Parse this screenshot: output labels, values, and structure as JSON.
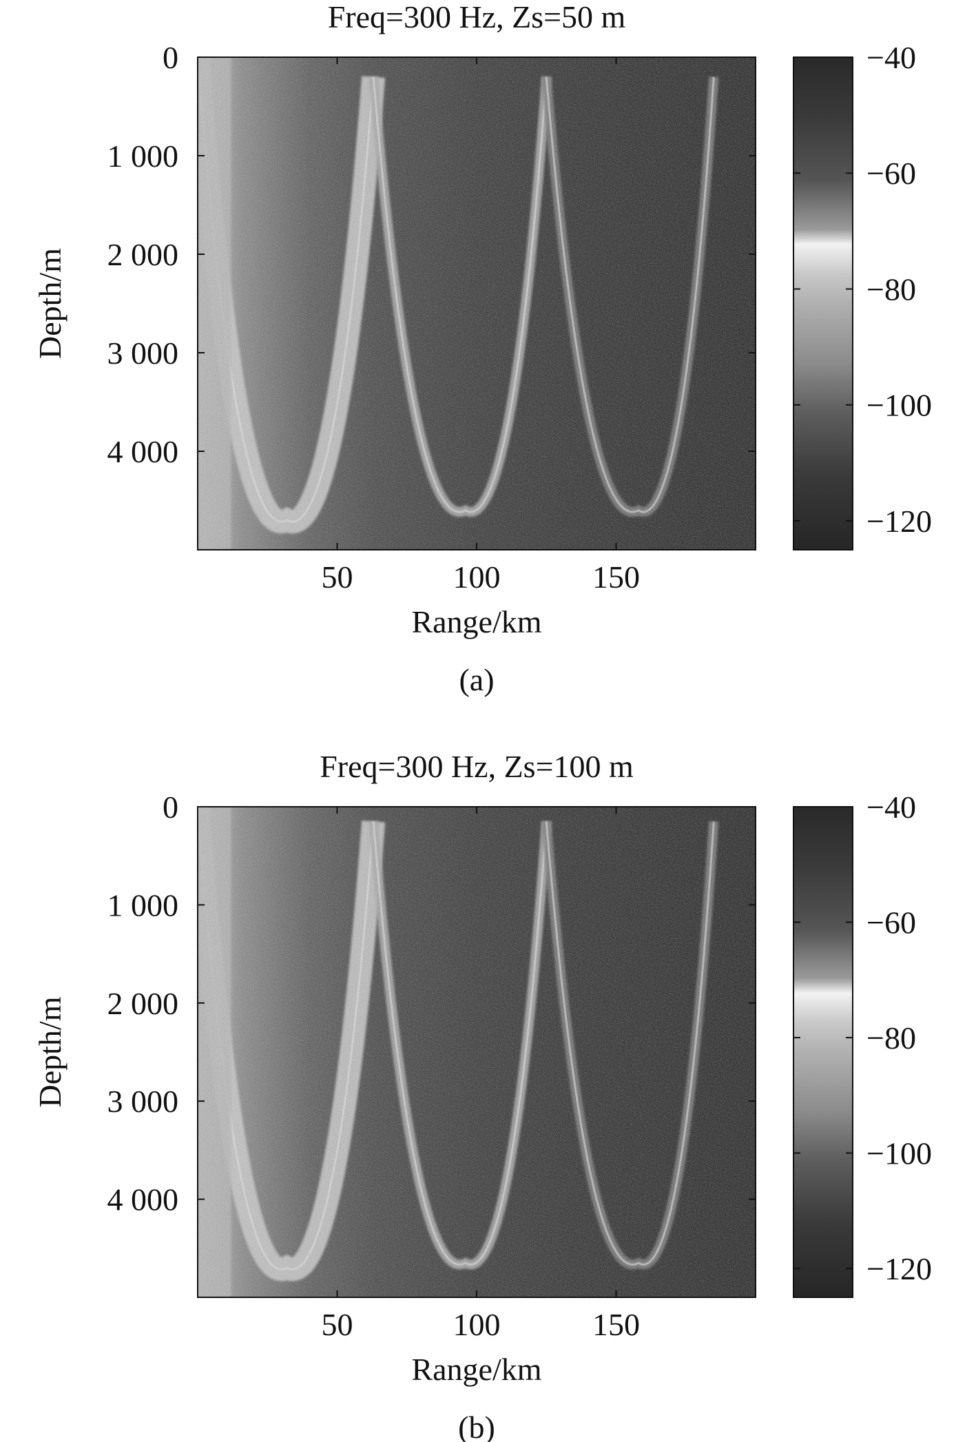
{
  "chart_data": [
    {
      "type": "heatmap",
      "title": "Freq=300 Hz, Zs=50 m",
      "xlabel": "Range/km",
      "ylabel": "Depth/m",
      "xlim": [
        0,
        200
      ],
      "ylim": [
        5000,
        0
      ],
      "xticks": [
        50,
        100,
        150
      ],
      "xtick_labels": [
        "50",
        "100",
        "150"
      ],
      "yticks": [
        0,
        1000,
        2000,
        3000,
        4000
      ],
      "ytick_labels": [
        "0",
        "1 000",
        "2 000",
        "3 000",
        "4 000"
      ],
      "colorbar": {
        "range": [
          -125,
          -40
        ],
        "ticks": [
          -40,
          -60,
          -80,
          -100,
          -120
        ],
        "tick_labels": [
          "−40",
          "−60",
          "−80",
          "−100",
          "−120"
        ],
        "colormap": "gray"
      },
      "convergence_zones": [
        {
          "range_km": 0,
          "depth_m": 0
        },
        {
          "range_km": 63,
          "depth_m": 200
        },
        {
          "range_km": 125,
          "depth_m": 200
        },
        {
          "range_km": 185,
          "depth_m": 200
        }
      ],
      "turning_points": [
        {
          "range_km": 32,
          "depth_m": 4700
        },
        {
          "range_km": 96,
          "depth_m": 4600
        },
        {
          "range_km": 158,
          "depth_m": 4600
        }
      ],
      "caption": "(a)"
    },
    {
      "type": "heatmap",
      "title": "Freq=300 Hz, Zs=100 m",
      "xlabel": "Range/km",
      "ylabel": "Depth/m",
      "xlim": [
        0,
        200
      ],
      "ylim": [
        5000,
        0
      ],
      "xticks": [
        50,
        100,
        150
      ],
      "xtick_labels": [
        "50",
        "100",
        "150"
      ],
      "yticks": [
        0,
        1000,
        2000,
        3000,
        4000
      ],
      "ytick_labels": [
        "0",
        "1 000",
        "2 000",
        "3 000",
        "4 000"
      ],
      "colorbar": {
        "range": [
          -125,
          -40
        ],
        "ticks": [
          -40,
          -60,
          -80,
          -100,
          -120
        ],
        "tick_labels": [
          "−40",
          "−60",
          "−80",
          "−100",
          "−120"
        ],
        "colormap": "gray"
      },
      "convergence_zones": [
        {
          "range_km": 0,
          "depth_m": 0
        },
        {
          "range_km": 63,
          "depth_m": 150
        },
        {
          "range_km": 125,
          "depth_m": 150
        },
        {
          "range_km": 185,
          "depth_m": 150
        }
      ],
      "turning_points": [
        {
          "range_km": 32,
          "depth_m": 4700
        },
        {
          "range_km": 96,
          "depth_m": 4650
        },
        {
          "range_km": 158,
          "depth_m": 4650
        }
      ],
      "caption": "(b)"
    }
  ]
}
